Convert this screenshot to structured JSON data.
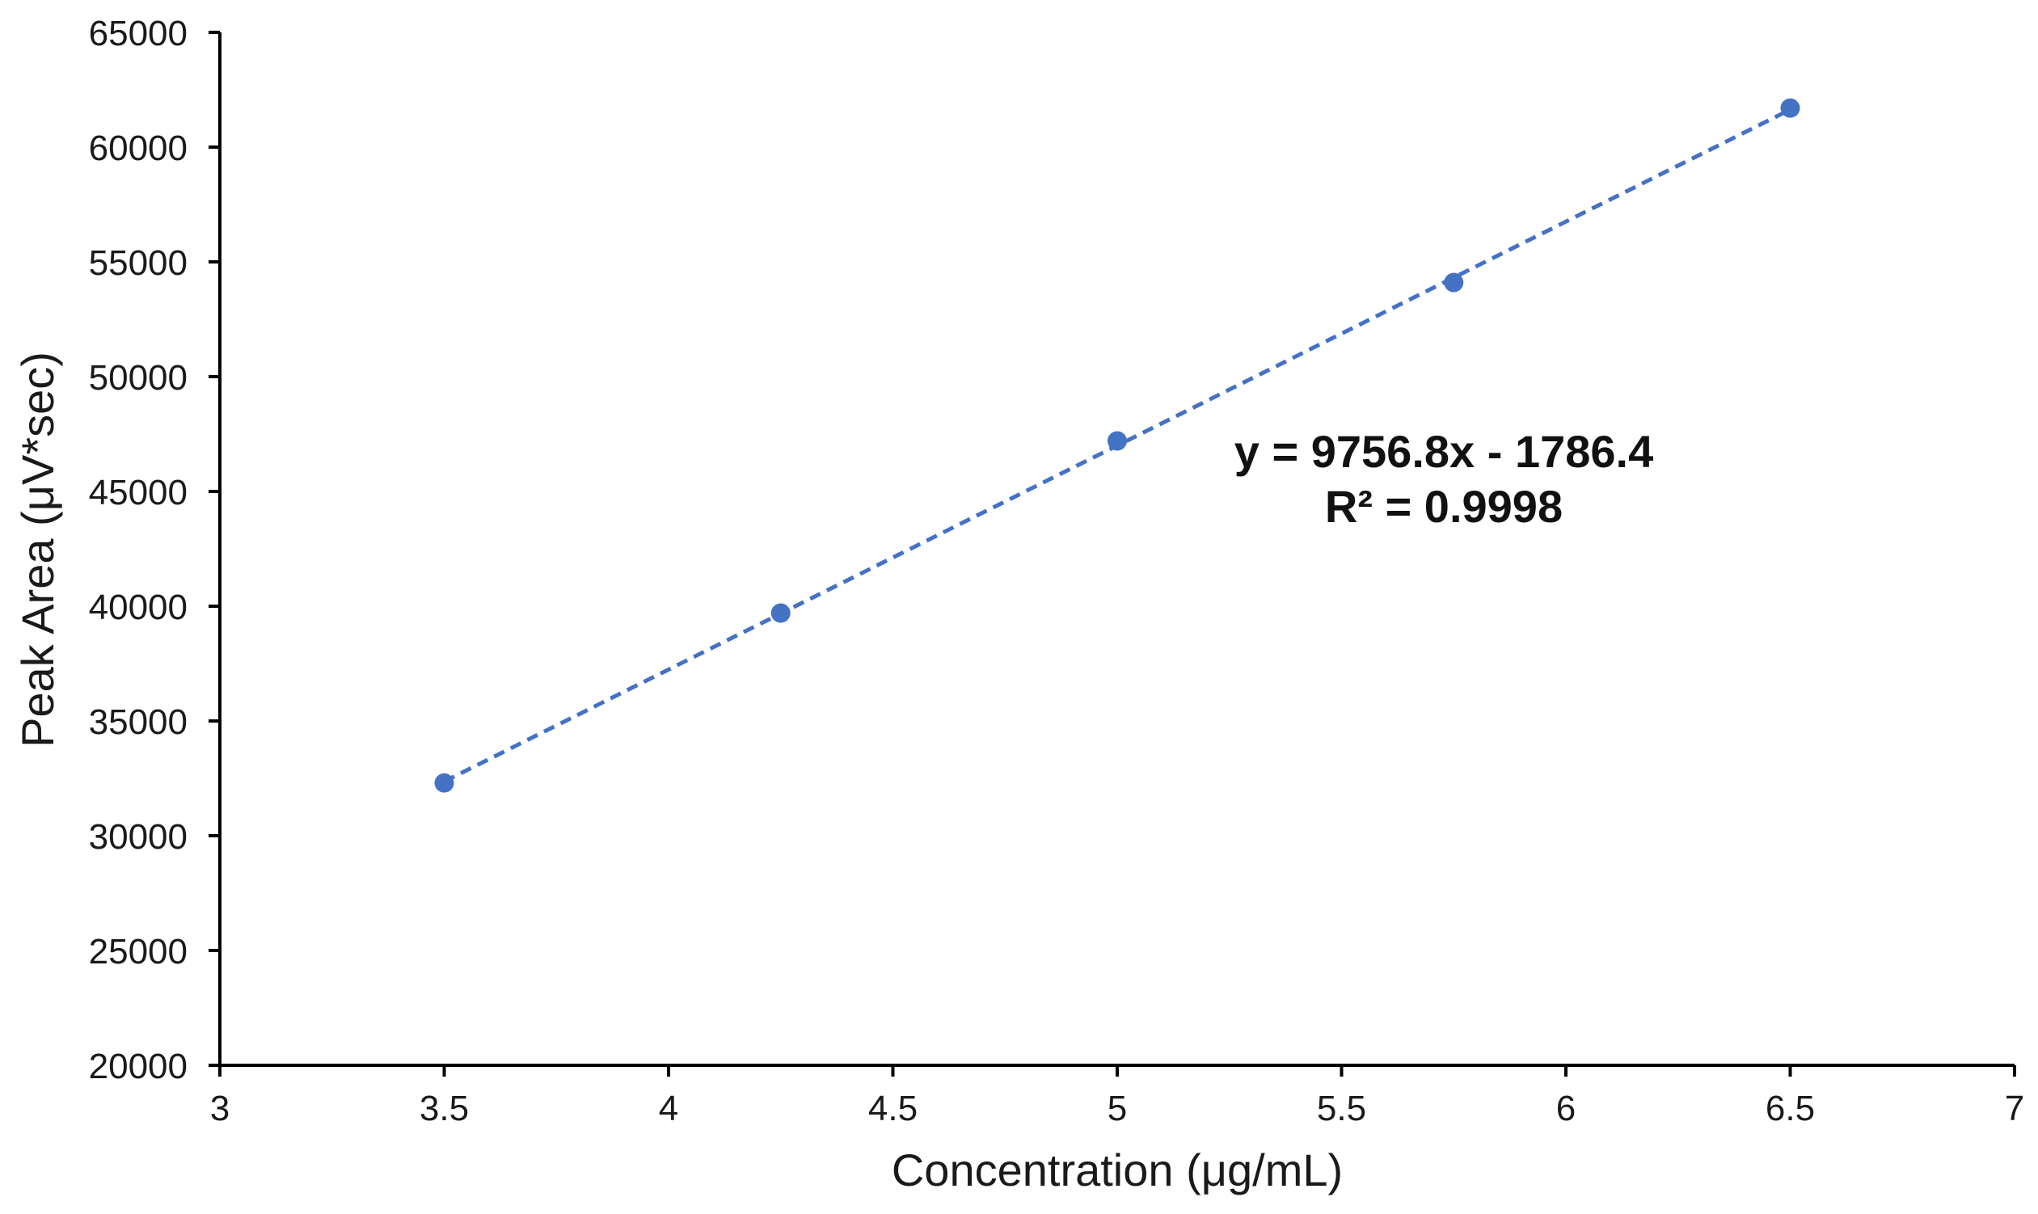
{
  "chart_data": {
    "type": "scatter",
    "title": "",
    "xlabel": "Concentration (μg/mL)",
    "ylabel": "Peak Area (μV*sec)",
    "xlim": [
      3,
      7
    ],
    "ylim": [
      20000,
      65000
    ],
    "x_ticks": [
      "3",
      "3.5",
      "4",
      "4.5",
      "5",
      "5.5",
      "6",
      "6.5",
      "7"
    ],
    "y_ticks": [
      "20000",
      "25000",
      "30000",
      "35000",
      "40000",
      "45000",
      "50000",
      "55000",
      "60000",
      "65000"
    ],
    "grid": false,
    "legend": "none",
    "series": [
      {
        "x": [
          3.5,
          4.25,
          5.0,
          5.75,
          6.5
        ],
        "y": [
          32300,
          39700,
          47200,
          54100,
          61700
        ],
        "color": "#4472c4"
      }
    ],
    "trendline": {
      "type": "linear",
      "slope": 9756.8,
      "intercept": -1786.4,
      "style": "dashed",
      "color": "#4472c4"
    },
    "annotations": [
      "y = 9756.8x - 1786.4",
      "R² = 0.9998"
    ]
  }
}
